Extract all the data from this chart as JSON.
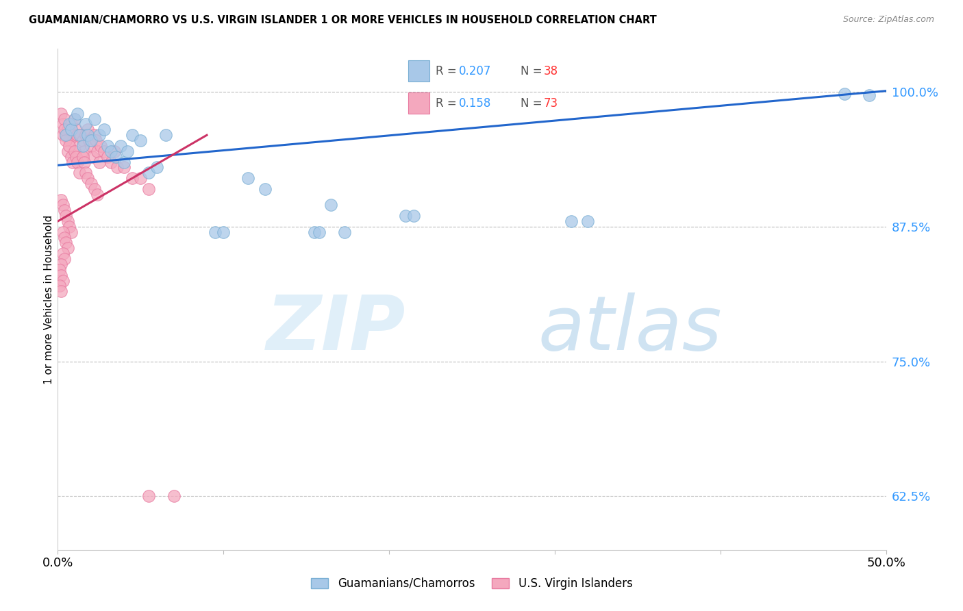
{
  "title": "GUAMANIAN/CHAMORRO VS U.S. VIRGIN ISLANDER 1 OR MORE VEHICLES IN HOUSEHOLD CORRELATION CHART",
  "source": "Source: ZipAtlas.com",
  "ylabel": "1 or more Vehicles in Household",
  "ytick_labels": [
    "100.0%",
    "87.5%",
    "75.0%",
    "62.5%"
  ],
  "ytick_values": [
    1.0,
    0.875,
    0.75,
    0.625
  ],
  "xlim": [
    0.0,
    0.5
  ],
  "ylim": [
    0.575,
    1.04
  ],
  "legend_R1": "0.207",
  "legend_N1": "38",
  "legend_R2": "0.158",
  "legend_N2": "73",
  "blue_color": "#a8c8e8",
  "blue_edge_color": "#7aafd4",
  "pink_color": "#f4a8be",
  "pink_edge_color": "#e87aa0",
  "trend_blue_color": "#2266cc",
  "trend_pink_color": "#cc3366",
  "blue_trend_x": [
    0.0,
    0.5
  ],
  "blue_trend_y": [
    0.932,
    1.001
  ],
  "pink_trend_x": [
    0.0,
    0.09
  ],
  "pink_trend_y": [
    0.88,
    0.96
  ],
  "blue_points_x": [
    0.005,
    0.007,
    0.008,
    0.01,
    0.012,
    0.013,
    0.015,
    0.017,
    0.018,
    0.02,
    0.022,
    0.025,
    0.028,
    0.03,
    0.032,
    0.035,
    0.038,
    0.04,
    0.042,
    0.045,
    0.05,
    0.055,
    0.06,
    0.065,
    0.095,
    0.1,
    0.115,
    0.125,
    0.155,
    0.165,
    0.21,
    0.215,
    0.31,
    0.32,
    0.475,
    0.49,
    0.158,
    0.173
  ],
  "blue_points_y": [
    0.96,
    0.97,
    0.965,
    0.975,
    0.98,
    0.96,
    0.95,
    0.97,
    0.96,
    0.955,
    0.975,
    0.96,
    0.965,
    0.95,
    0.945,
    0.94,
    0.95,
    0.935,
    0.945,
    0.96,
    0.955,
    0.925,
    0.93,
    0.96,
    0.87,
    0.87,
    0.92,
    0.91,
    0.87,
    0.895,
    0.885,
    0.885,
    0.88,
    0.88,
    0.998,
    0.997,
    0.87,
    0.87
  ],
  "pink_points_x": [
    0.002,
    0.003,
    0.004,
    0.005,
    0.006,
    0.007,
    0.008,
    0.009,
    0.01,
    0.011,
    0.012,
    0.013,
    0.014,
    0.015,
    0.016,
    0.017,
    0.018,
    0.019,
    0.02,
    0.021,
    0.022,
    0.023,
    0.024,
    0.025,
    0.026,
    0.028,
    0.03,
    0.032,
    0.034,
    0.036,
    0.04,
    0.045,
    0.05,
    0.055,
    0.003,
    0.004,
    0.005,
    0.006,
    0.007,
    0.008,
    0.009,
    0.01,
    0.011,
    0.012,
    0.013,
    0.015,
    0.016,
    0.017,
    0.018,
    0.02,
    0.022,
    0.024,
    0.002,
    0.003,
    0.004,
    0.005,
    0.006,
    0.007,
    0.008,
    0.003,
    0.004,
    0.005,
    0.006,
    0.003,
    0.004,
    0.002,
    0.001,
    0.002,
    0.003,
    0.001,
    0.002,
    0.07,
    0.055
  ],
  "pink_points_y": [
    0.98,
    0.97,
    0.975,
    0.96,
    0.965,
    0.955,
    0.97,
    0.96,
    0.975,
    0.965,
    0.96,
    0.95,
    0.96,
    0.955,
    0.945,
    0.96,
    0.965,
    0.955,
    0.95,
    0.94,
    0.96,
    0.955,
    0.945,
    0.935,
    0.95,
    0.945,
    0.94,
    0.935,
    0.945,
    0.93,
    0.93,
    0.92,
    0.92,
    0.91,
    0.96,
    0.965,
    0.955,
    0.945,
    0.95,
    0.94,
    0.935,
    0.945,
    0.94,
    0.935,
    0.925,
    0.94,
    0.935,
    0.925,
    0.92,
    0.915,
    0.91,
    0.905,
    0.9,
    0.895,
    0.89,
    0.885,
    0.88,
    0.875,
    0.87,
    0.87,
    0.865,
    0.86,
    0.855,
    0.85,
    0.845,
    0.84,
    0.835,
    0.83,
    0.825,
    0.82,
    0.815,
    0.625,
    0.625
  ]
}
